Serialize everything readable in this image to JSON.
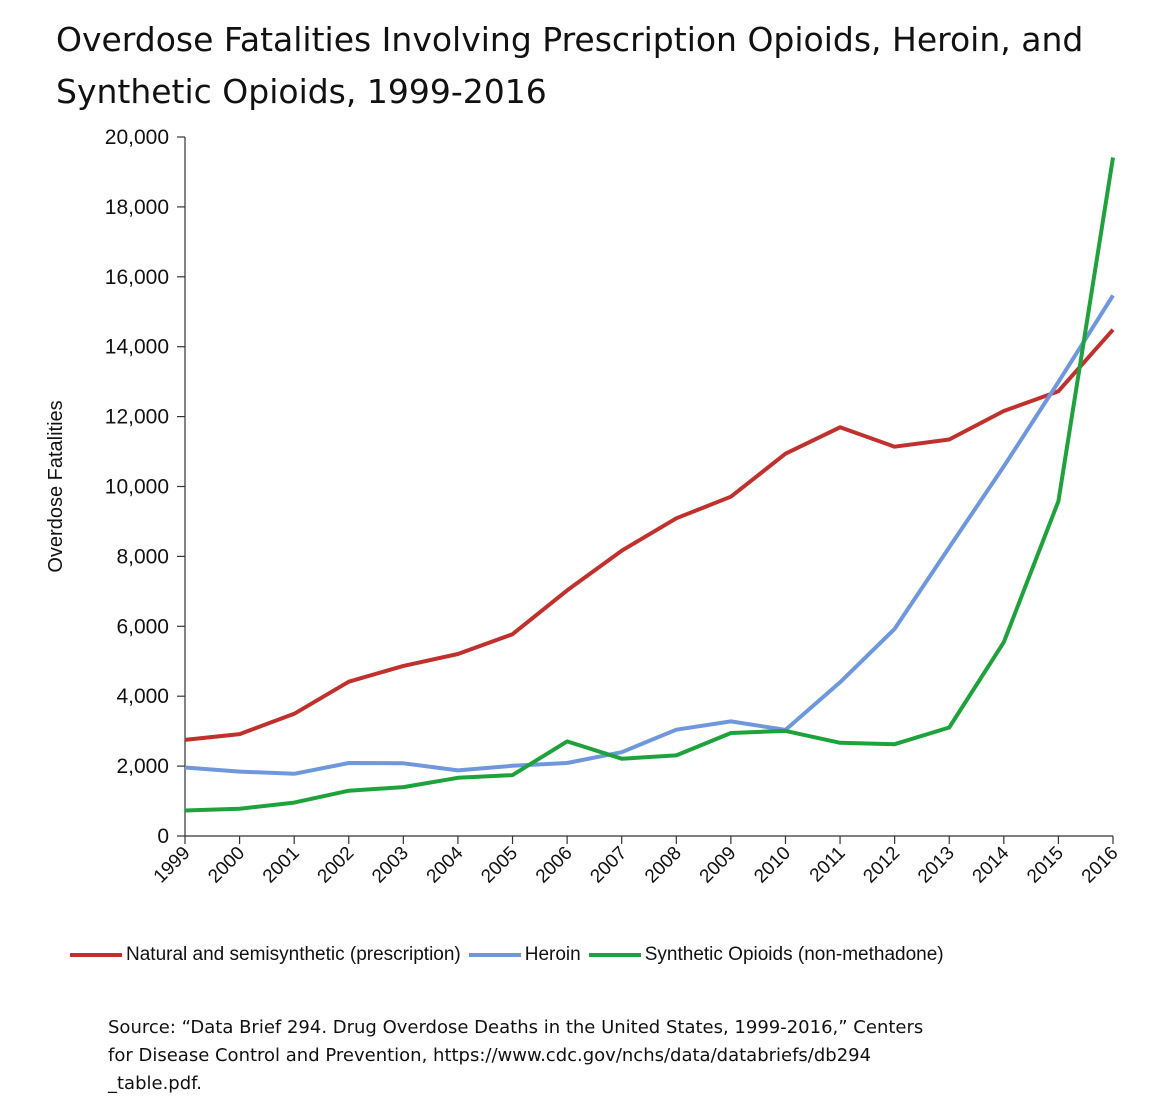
{
  "chart_data": {
    "type": "line",
    "title": "Overdose Fatalities Involving Prescription Opioids, Heroin, and Synthetic Opioids, 1999-2016",
    "ylabel": "Overdose Fatalities",
    "xlabel": "",
    "ylim": [
      0,
      20000
    ],
    "yticks": [
      0,
      2000,
      4000,
      6000,
      8000,
      10000,
      12000,
      14000,
      16000,
      18000,
      20000
    ],
    "ytick_labels": [
      "0",
      "2,000",
      "4,000",
      "6,000",
      "8,000",
      "10,000",
      "12,000",
      "14,000",
      "16,000",
      "18,000",
      "20,000"
    ],
    "categories": [
      "1999",
      "2000",
      "2001",
      "2002",
      "2003",
      "2004",
      "2005",
      "2006",
      "2007",
      "2008",
      "2009",
      "2010",
      "2011",
      "2012",
      "2013",
      "2014",
      "2015",
      "2016"
    ],
    "grid": false,
    "legend_position": "bottom",
    "series": [
      {
        "name": "Natural and semisynthetic (prescription)",
        "color": "#c0312d",
        "values": [
          2749,
          2917,
          3497,
          4416,
          4867,
          5207,
          5773,
          7026,
          8164,
          9091,
          9707,
          10938,
          11693,
          11140,
          11346,
          12159,
          12727,
          14487
        ]
      },
      {
        "name": "Heroin",
        "color": "#6f97db",
        "values": [
          1960,
          1842,
          1779,
          2089,
          2080,
          1878,
          2009,
          2088,
          2399,
          3041,
          3278,
          3036,
          4397,
          5925,
          8257,
          10574,
          12989,
          15469
        ]
      },
      {
        "name": "Synthetic Opioids (non-methadone)",
        "color": "#1fa23c",
        "values": [
          730,
          782,
          957,
          1295,
          1400,
          1664,
          1742,
          2707,
          2213,
          2306,
          2946,
          3007,
          2666,
          2628,
          3105,
          5544,
          9580,
          19413
        ]
      }
    ]
  },
  "source_text": "Source: “Data Brief 294. Drug Overdose Deaths in the United States, 1999-2016,” Centers\nfor Disease Control and Prevention, https://www.cdc.gov/nchs/data/databriefs/db294\n_table.pdf."
}
